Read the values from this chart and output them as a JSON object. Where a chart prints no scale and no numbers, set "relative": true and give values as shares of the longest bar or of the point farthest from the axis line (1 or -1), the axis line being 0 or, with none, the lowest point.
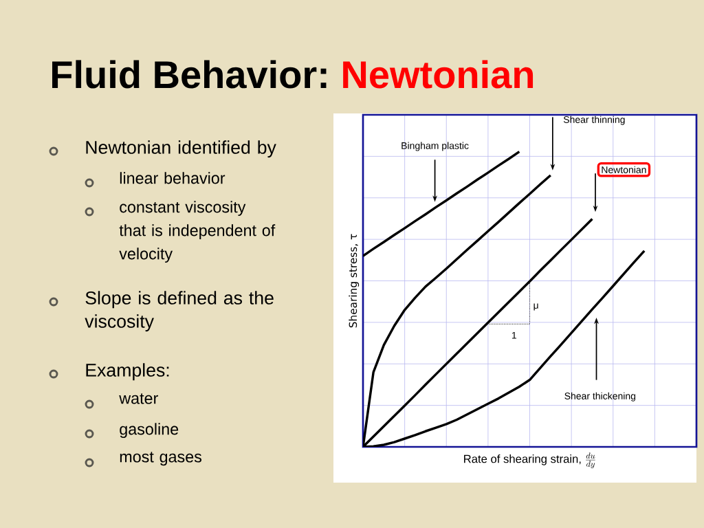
{
  "chart_data": {
    "type": "line",
    "relative": true,
    "title": "Fluid Behavior:",
    "subtitle": "Newtonian",
    "xlabel": "Rate of shearing strain,",
    "ylabel": "Shearing stress, τ",
    "categories": [
      null,
      null,
      null,
      null,
      null,
      null,
      null,
      null,
      null,
      null,
      null,
      null,
      null,
      null,
      null,
      null,
      null,
      null,
      null,
      null,
      null,
      null,
      null,
      null,
      null,
      null,
      null,
      null,
      null,
      null,
      null,
      null,
      null
    ],
    "grid": true,
    "marker": "none",
    "line_style": "solid",
    "series": [
      {
        "color": "#000000",
        "values": [
          0.647,
          0.671,
          0.694,
          0.718,
          0.741,
          0.765,
          0.788,
          0.812,
          0.835,
          0.859,
          0.882,
          0.906,
          0.929,
          0.953,
          0.976,
          1.0,
          null,
          null,
          null,
          null,
          null,
          null,
          null,
          null,
          null,
          null,
          null,
          null,
          null,
          null,
          null,
          null,
          null
        ]
      },
      {
        "color": "#000000",
        "values": [
          0,
          0.253,
          0.345,
          0.41,
          0.464,
          0.505,
          0.543,
          0.573,
          0.604,
          0.636,
          0.668,
          0.699,
          0.731,
          0.762,
          0.794,
          0.826,
          0.857,
          0.889,
          0.92,
          null,
          null,
          null,
          null,
          null,
          null,
          null,
          null,
          null,
          null,
          null,
          null,
          null,
          null
        ]
      },
      {
        "color": "#000000",
        "values": [
          0,
          0.035,
          0.07,
          0.105,
          0.14,
          0.175,
          0.211,
          0.246,
          0.281,
          0.316,
          0.351,
          0.386,
          0.421,
          0.456,
          0.491,
          0.526,
          0.561,
          0.597,
          0.632,
          0.667,
          0.702,
          0.737,
          0.772,
          null,
          null,
          null,
          null,
          null,
          null,
          null,
          null,
          null,
          null
        ]
      },
      {
        "color": "#000000",
        "values": [
          0,
          0.002,
          0.007,
          0.016,
          0.028,
          0.04,
          0.053,
          0.065,
          0.077,
          0.092,
          0.11,
          0.128,
          0.146,
          0.164,
          0.184,
          0.204,
          0.227,
          0.267,
          0.307,
          0.346,
          0.386,
          0.426,
          0.466,
          0.505,
          0.545,
          0.585,
          0.625,
          0.664,
          null,
          null,
          null,
          null,
          null
        ]
      }
    ],
    "annotations": [
      "Bingham plastic",
      "Shear thinning",
      "Newtonian",
      "Shear thickening",
      "μ",
      "1",
      "\\frac{du}{dy}",
      "Newtonian identified by",
      "linear behavior",
      "constant viscosity that is independent of velocity",
      "Slope is defined as the viscosity",
      "Examples:",
      "water",
      "gasoline",
      "most gases"
    ]
  }
}
